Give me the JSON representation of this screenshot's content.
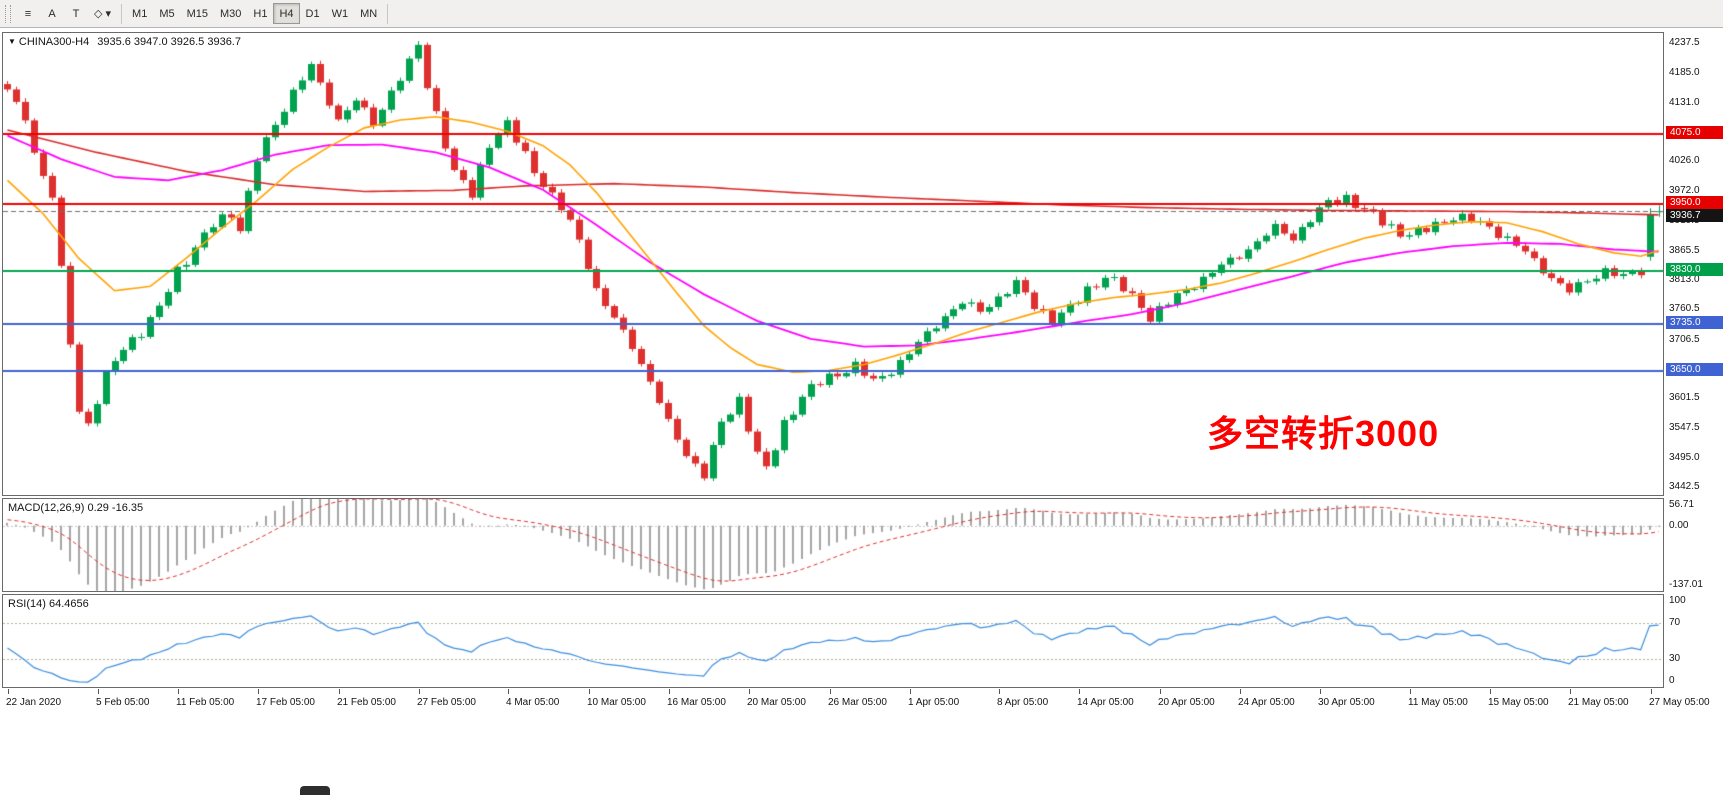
{
  "colors": {
    "up": "#00a24f",
    "down": "#df3030",
    "ma_red": "#d92b2b",
    "ma_magenta": "#ff00ff",
    "ma_orange": "#ffa200",
    "line_red": "#f00000",
    "line_green": "#00a64f",
    "line_blue": "#3f63d2",
    "bid_line": "#6f6f6f",
    "macd_hist": "#a6a6a6",
    "macd_signal": "#df3030",
    "rsi_line": "#3e8ede",
    "level_dotted": "#b2b29a",
    "annotation": "#ff0000",
    "badge_red": "#e60000",
    "badge_green": "#00a04a",
    "badge_blue": "#3f63d2",
    "badge_current": "#141414"
  },
  "toolbar": {
    "tools": [
      {
        "name": "charts-list-icon",
        "glyph": "≡"
      },
      {
        "name": "cursor-tool-icon",
        "glyph": "A"
      },
      {
        "name": "text-tool-icon",
        "glyph": "T"
      },
      {
        "name": "shapes-tool-icon",
        "glyph": "◇ ▾"
      }
    ],
    "timeframes": [
      {
        "label": "M1"
      },
      {
        "label": "M5"
      },
      {
        "label": "M15"
      },
      {
        "label": "M30"
      },
      {
        "label": "H1"
      },
      {
        "label": "H4",
        "active": true
      },
      {
        "label": "D1"
      },
      {
        "label": "W1"
      },
      {
        "label": "MN"
      }
    ]
  },
  "chart": {
    "collapse_glyph": "▼",
    "symbol_title": "CHINA300-H4",
    "ohlc_text": "3935.6 3947.0 3926.5 3936.7",
    "annotation": "多空转折3000"
  },
  "macd": {
    "label": "MACD(12,26,9) 0.29 -16.35",
    "fast": 12,
    "slow": 26,
    "signal": 9,
    "macd_value": 0.29,
    "signal_value": -16.35,
    "range": {
      "max": 58,
      "min": -142
    },
    "scale": [
      {
        "label": "56.71",
        "value": 56.71
      },
      {
        "label": "0.00",
        "value": 0.0
      },
      {
        "label": "-137.01",
        "value": -137.01
      }
    ]
  },
  "rsi": {
    "label": "RSI(14) 64.4656",
    "period": 14,
    "value": 64.4656,
    "levels": [
      70,
      30
    ],
    "range": {
      "max": 100,
      "min": 0
    },
    "scale": [
      {
        "label": "100",
        "value": 100
      },
      {
        "label": "70",
        "value": 70
      },
      {
        "label": "30",
        "value": 30
      },
      {
        "label": "0",
        "value": 0
      }
    ]
  },
  "chart_data": {
    "type": "candlestick",
    "symbol": "CHINA300",
    "timeframe": "H4",
    "visible_bars": 186,
    "last_bar": {
      "open": 3935.6,
      "high": 3947.0,
      "low": 3926.5,
      "close": 3936.7
    },
    "prev_bar": {
      "open": 3855,
      "high": 3942,
      "low": 3848,
      "close": 3931
    },
    "y_axis": {
      "min": 3428,
      "max": 4256,
      "ticks": [
        {
          "price": 4237.5,
          "label": "4237.5"
        },
        {
          "price": 4185.0,
          "label": "4185.0"
        },
        {
          "price": 4131.0,
          "label": "4131.0"
        },
        {
          "price": 4078.5,
          "label": "4078.5"
        },
        {
          "price": 4026.0,
          "label": "4026.0"
        },
        {
          "price": 3972.0,
          "label": "3972.0"
        },
        {
          "price": 3919.5,
          "label": "3919.5"
        },
        {
          "price": 3865.5,
          "label": "3865.5"
        },
        {
          "price": 3813.0,
          "label": "3813.0"
        },
        {
          "price": 3760.5,
          "label": "3760.5"
        },
        {
          "price": 3706.5,
          "label": "3706.5"
        },
        {
          "price": 3654.0,
          "label": "3654.0"
        },
        {
          "price": 3601.5,
          "label": "3601.5"
        },
        {
          "price": 3547.5,
          "label": "3547.5"
        },
        {
          "price": 3495.0,
          "label": "3495.0"
        },
        {
          "price": 3442.5,
          "label": "3442.5"
        }
      ]
    },
    "x_axis": {
      "bar_indices": [
        0,
        10,
        19,
        28,
        37,
        46,
        56,
        65,
        74,
        83,
        92,
        101,
        111,
        120,
        129,
        138,
        147,
        157,
        166,
        175,
        184
      ],
      "labels": [
        "22 Jan 2020",
        "5 Feb 05:00",
        "11 Feb 05:00",
        "17 Feb 05:00",
        "21 Feb 05:00",
        "27 Feb 05:00",
        "4 Mar 05:00",
        "10 Mar 05:00",
        "16 Mar 05:00",
        "20 Mar 05:00",
        "26 Mar 05:00",
        "1 Apr 05:00",
        "8 Apr 05:00",
        "14 Apr 05:00",
        "20 Apr 05:00",
        "24 Apr 05:00",
        "30 Apr 05:00",
        "11 May 05:00",
        "15 May 05:00",
        "21 May 05:00",
        "27 May 05:00"
      ]
    },
    "hlines": [
      {
        "price": 4075.0,
        "label": "4075.0",
        "color_key": "line_red",
        "badge_key": "badge_red",
        "width": 2
      },
      {
        "price": 3950.0,
        "label": "3950.0",
        "color_key": "line_red",
        "badge_key": "badge_red",
        "width": 2
      },
      {
        "price": 3830.0,
        "label": "3830.0",
        "color_key": "line_green",
        "badge_key": "badge_green",
        "width": 2
      },
      {
        "price": 3735.0,
        "label": "3735.0",
        "color_key": "line_blue",
        "badge_key": "badge_blue",
        "width": 2
      },
      {
        "price": 3650.0,
        "label": "3650.0",
        "color_key": "line_blue",
        "badge_key": "badge_blue",
        "width": 2
      }
    ],
    "bid": {
      "price": 3936.7,
      "label": "3936.7"
    },
    "prehistory_anchors": [
      [
        -220,
        3860
      ],
      [
        -180,
        3905
      ],
      [
        -140,
        3950
      ],
      [
        -100,
        4000
      ],
      [
        -70,
        4060
      ],
      [
        -45,
        4110
      ],
      [
        -25,
        4150
      ],
      [
        -12,
        4190
      ],
      [
        -6,
        4208
      ],
      [
        -1,
        4168
      ]
    ],
    "price_anchors": [
      [
        0,
        4150
      ],
      [
        2,
        4105
      ],
      [
        3,
        4042
      ],
      [
        5,
        3962
      ],
      [
        6,
        3830
      ],
      [
        7,
        3700
      ],
      [
        8,
        3580
      ],
      [
        9,
        3556
      ],
      [
        11,
        3640
      ],
      [
        13,
        3692
      ],
      [
        15,
        3722
      ],
      [
        17,
        3762
      ],
      [
        19,
        3830
      ],
      [
        21,
        3872
      ],
      [
        23,
        3912
      ],
      [
        25,
        3932
      ],
      [
        26,
        3906
      ],
      [
        28,
        4030
      ],
      [
        30,
        4092
      ],
      [
        32,
        4152
      ],
      [
        34,
        4196
      ],
      [
        35,
        4162
      ],
      [
        37,
        4102
      ],
      [
        39,
        4136
      ],
      [
        41,
        4092
      ],
      [
        43,
        4152
      ],
      [
        45,
        4202
      ],
      [
        46,
        4232
      ],
      [
        47,
        4162
      ],
      [
        48,
        4112
      ],
      [
        50,
        4006
      ],
      [
        52,
        3966
      ],
      [
        54,
        4060
      ],
      [
        56,
        4092
      ],
      [
        58,
        4036
      ],
      [
        60,
        3986
      ],
      [
        62,
        3942
      ],
      [
        64,
        3886
      ],
      [
        66,
        3796
      ],
      [
        68,
        3742
      ],
      [
        70,
        3696
      ],
      [
        72,
        3632
      ],
      [
        74,
        3556
      ],
      [
        76,
        3502
      ],
      [
        78,
        3464
      ],
      [
        80,
        3556
      ],
      [
        82,
        3600
      ],
      [
        84,
        3502
      ],
      [
        85,
        3472
      ],
      [
        87,
        3556
      ],
      [
        89,
        3606
      ],
      [
        91,
        3630
      ],
      [
        93,
        3646
      ],
      [
        95,
        3660
      ],
      [
        97,
        3630
      ],
      [
        99,
        3652
      ],
      [
        101,
        3682
      ],
      [
        103,
        3716
      ],
      [
        105,
        3750
      ],
      [
        107,
        3772
      ],
      [
        109,
        3758
      ],
      [
        111,
        3782
      ],
      [
        113,
        3806
      ],
      [
        115,
        3768
      ],
      [
        117,
        3742
      ],
      [
        119,
        3762
      ],
      [
        121,
        3796
      ],
      [
        123,
        3820
      ],
      [
        125,
        3798
      ],
      [
        127,
        3768
      ],
      [
        128,
        3746
      ],
      [
        130,
        3772
      ],
      [
        132,
        3796
      ],
      [
        134,
        3816
      ],
      [
        136,
        3838
      ],
      [
        138,
        3858
      ],
      [
        140,
        3882
      ],
      [
        142,
        3906
      ],
      [
        144,
        3890
      ],
      [
        146,
        3922
      ],
      [
        148,
        3952
      ],
      [
        150,
        3962
      ],
      [
        152,
        3938
      ],
      [
        154,
        3918
      ],
      [
        156,
        3898
      ],
      [
        158,
        3896
      ],
      [
        160,
        3912
      ],
      [
        162,
        3928
      ],
      [
        164,
        3920
      ],
      [
        166,
        3908
      ],
      [
        168,
        3888
      ],
      [
        170,
        3862
      ],
      [
        172,
        3832
      ],
      [
        174,
        3806
      ],
      [
        175,
        3792
      ],
      [
        177,
        3812
      ],
      [
        179,
        3832
      ],
      [
        181,
        3818
      ],
      [
        183,
        3830
      ],
      [
        184,
        3931
      ],
      [
        185,
        3936.7
      ]
    ],
    "overlays": [
      {
        "name": "ma-slow-red",
        "color_key": "ma_red",
        "width": 1.6,
        "anchors": [
          [
            0,
            4082
          ],
          [
            10,
            4042
          ],
          [
            20,
            4008
          ],
          [
            30,
            3984
          ],
          [
            40,
            3972
          ],
          [
            50,
            3974
          ],
          [
            58,
            3982
          ],
          [
            68,
            3986
          ],
          [
            78,
            3980
          ],
          [
            88,
            3970
          ],
          [
            98,
            3962
          ],
          [
            108,
            3955
          ],
          [
            118,
            3948
          ],
          [
            128,
            3943
          ],
          [
            138,
            3940
          ],
          [
            148,
            3938
          ],
          [
            158,
            3937
          ],
          [
            168,
            3936
          ],
          [
            178,
            3933
          ],
          [
            185,
            3930
          ]
        ]
      },
      {
        "name": "ma-medium-magenta",
        "color_key": "ma_magenta",
        "width": 1.8,
        "anchors": [
          [
            0,
            4072
          ],
          [
            6,
            4030
          ],
          [
            12,
            3998
          ],
          [
            18,
            3992
          ],
          [
            24,
            4010
          ],
          [
            30,
            4038
          ],
          [
            36,
            4055
          ],
          [
            42,
            4056
          ],
          [
            48,
            4042
          ],
          [
            54,
            4015
          ],
          [
            60,
            3975
          ],
          [
            66,
            3912
          ],
          [
            72,
            3845
          ],
          [
            78,
            3788
          ],
          [
            84,
            3740
          ],
          [
            90,
            3708
          ],
          [
            96,
            3694
          ],
          [
            102,
            3696
          ],
          [
            108,
            3708
          ],
          [
            114,
            3722
          ],
          [
            120,
            3738
          ],
          [
            126,
            3752
          ],
          [
            132,
            3772
          ],
          [
            138,
            3796
          ],
          [
            144,
            3820
          ],
          [
            150,
            3845
          ],
          [
            156,
            3862
          ],
          [
            162,
            3874
          ],
          [
            168,
            3880
          ],
          [
            174,
            3878
          ],
          [
            180,
            3868
          ],
          [
            185,
            3864
          ]
        ]
      },
      {
        "name": "ma-fast-orange",
        "color_key": "ma_orange",
        "width": 1.6,
        "anchors": [
          [
            0,
            3992
          ],
          [
            4,
            3932
          ],
          [
            8,
            3852
          ],
          [
            12,
            3794
          ],
          [
            16,
            3802
          ],
          [
            20,
            3852
          ],
          [
            24,
            3906
          ],
          [
            28,
            3956
          ],
          [
            32,
            4012
          ],
          [
            36,
            4052
          ],
          [
            40,
            4086
          ],
          [
            44,
            4100
          ],
          [
            48,
            4106
          ],
          [
            52,
            4096
          ],
          [
            56,
            4080
          ],
          [
            60,
            4054
          ],
          [
            63,
            4020
          ],
          [
            66,
            3970
          ],
          [
            69,
            3910
          ],
          [
            72,
            3850
          ],
          [
            75,
            3790
          ],
          [
            78,
            3732
          ],
          [
            81,
            3692
          ],
          [
            84,
            3662
          ],
          [
            88,
            3648
          ],
          [
            92,
            3651
          ],
          [
            96,
            3662
          ],
          [
            100,
            3680
          ],
          [
            104,
            3700
          ],
          [
            108,
            3722
          ],
          [
            112,
            3740
          ],
          [
            116,
            3758
          ],
          [
            120,
            3772
          ],
          [
            124,
            3782
          ],
          [
            128,
            3788
          ],
          [
            132,
            3796
          ],
          [
            136,
            3808
          ],
          [
            140,
            3826
          ],
          [
            144,
            3846
          ],
          [
            148,
            3868
          ],
          [
            152,
            3888
          ],
          [
            156,
            3902
          ],
          [
            160,
            3912
          ],
          [
            164,
            3918
          ],
          [
            168,
            3916
          ],
          [
            172,
            3900
          ],
          [
            176,
            3878
          ],
          [
            180,
            3862
          ],
          [
            183,
            3856
          ],
          [
            185,
            3866
          ]
        ]
      }
    ]
  }
}
